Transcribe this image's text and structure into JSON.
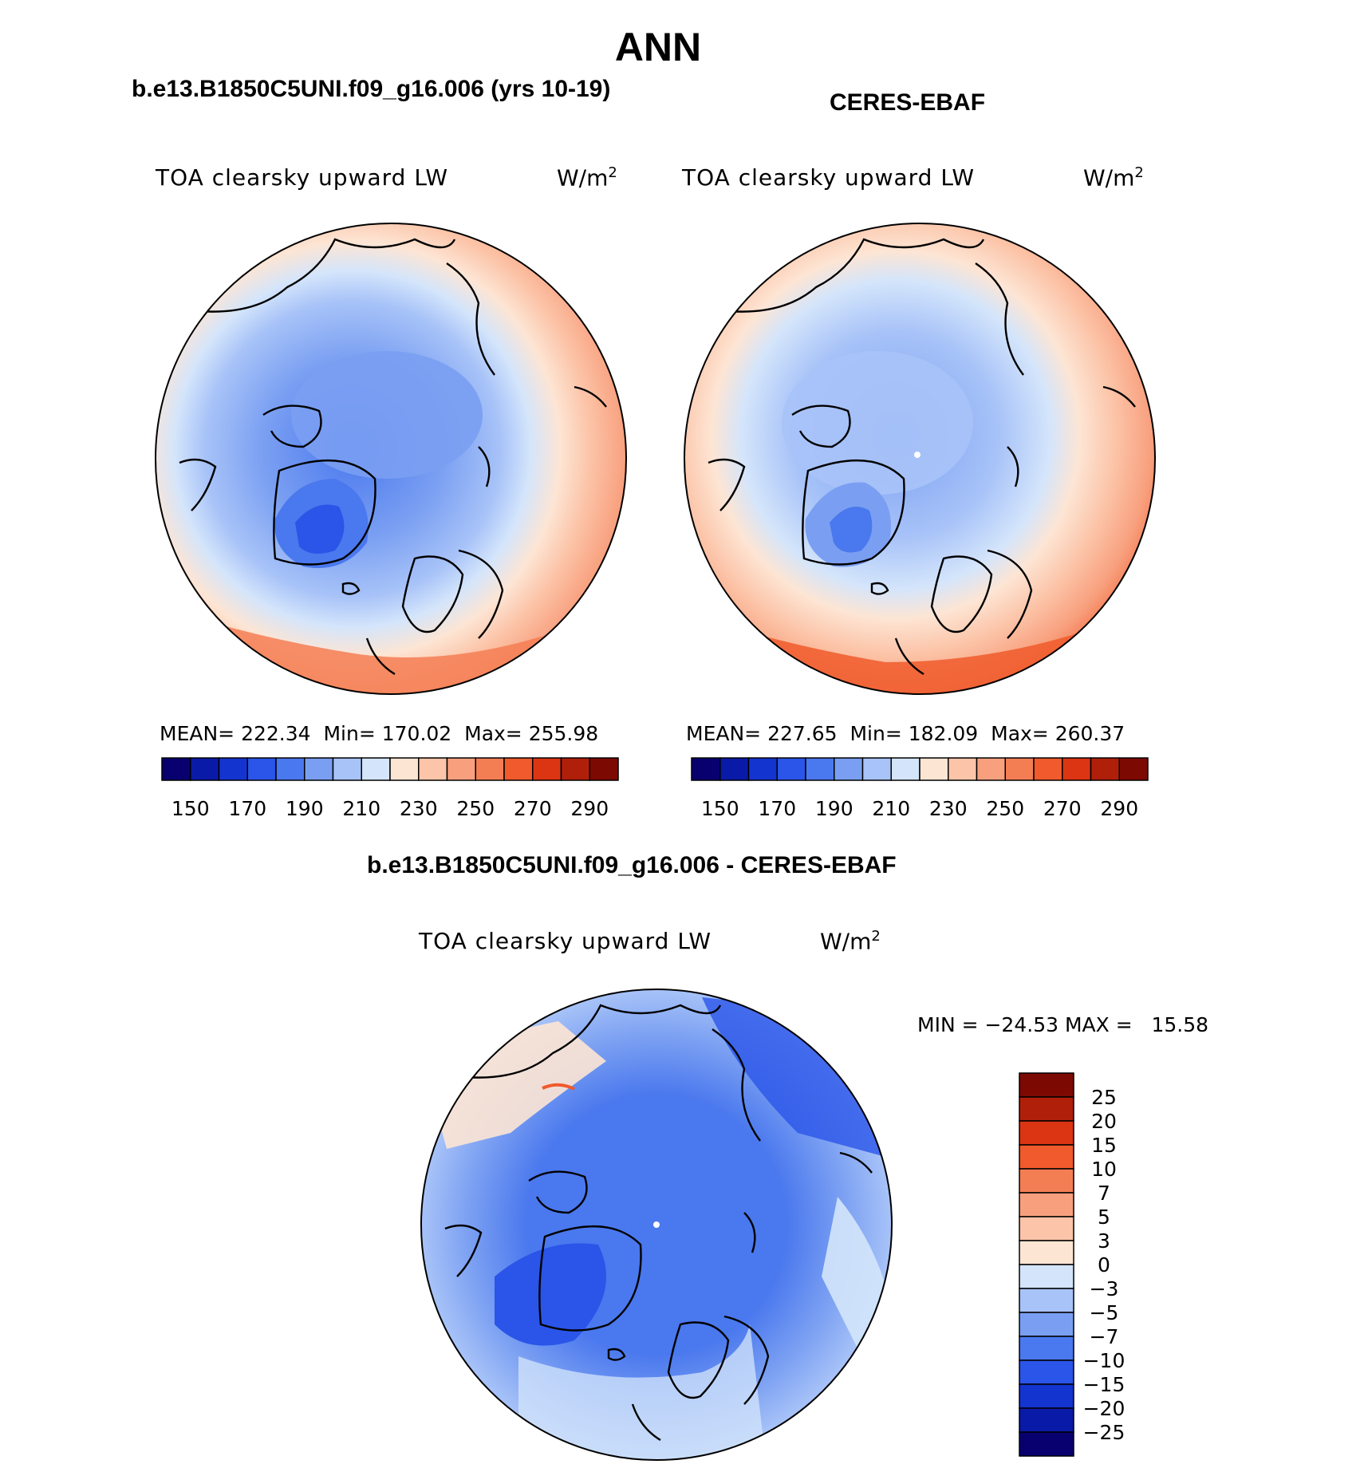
{
  "page": {
    "season": "ANN"
  },
  "panels": {
    "model": {
      "case_title": "b.e13.B1850C5UNI.f09_g16.006 (yrs 10-19)",
      "variable": "TOA clearsky upward LW",
      "units_base": "W/m",
      "units_exp": "2",
      "stats": {
        "mean_label": "MEAN=",
        "mean": "222.34",
        "min_label": "Min=",
        "min": "170.02",
        "max_label": "Max=",
        "max": "255.98"
      }
    },
    "obs": {
      "case_title": "CERES-EBAF",
      "variable": "TOA clearsky upward LW",
      "units_base": "W/m",
      "units_exp": "2",
      "stats": {
        "mean_label": "MEAN=",
        "mean": "227.65",
        "min_label": "Min=",
        "min": "182.09",
        "max_label": "Max=",
        "max": "260.37"
      }
    },
    "diff": {
      "case_title": "b.e13.B1850C5UNI.f09_g16.006 - CERES-EBAF",
      "variable": "TOA clearsky upward LW",
      "units_base": "W/m",
      "units_exp": "2",
      "minmax_text": "MIN = −24.53 MAX =   15.58"
    }
  },
  "colorbar_main": {
    "colors": [
      "#08006e",
      "#0a1aa8",
      "#1434d0",
      "#2a55e8",
      "#4a78ee",
      "#7a9ff2",
      "#a8c3f8",
      "#d4e5fb",
      "#fde5d4",
      "#fcc4a8",
      "#f8a07e",
      "#f47e54",
      "#f05a2c",
      "#dc3514",
      "#b01f0a",
      "#7d0a02"
    ],
    "tick_labels": [
      "150",
      "170",
      "190",
      "210",
      "230",
      "250",
      "270",
      "290"
    ]
  },
  "colorbar_diff": {
    "colors": [
      "#7d0a02",
      "#b01f0a",
      "#dc3514",
      "#f05a2c",
      "#f47e54",
      "#f8a07e",
      "#fcc4a8",
      "#fde5d4",
      "#d4e5fb",
      "#a8c3f8",
      "#7a9ff2",
      "#4a78ee",
      "#2a55e8",
      "#1434d0",
      "#0a1aa8",
      "#08006e"
    ],
    "tick_labels": [
      "25",
      "20",
      "15",
      "10",
      "7",
      "5",
      "3",
      "0",
      "−3",
      "−5",
      "−7",
      "−10",
      "−15",
      "−20",
      "−25"
    ]
  },
  "map_colors": {
    "ocean_low_lat_model": "#f6b48f",
    "ocean_low_lat_obs": "#f4a079",
    "diff_base": "#a8c3f8"
  }
}
